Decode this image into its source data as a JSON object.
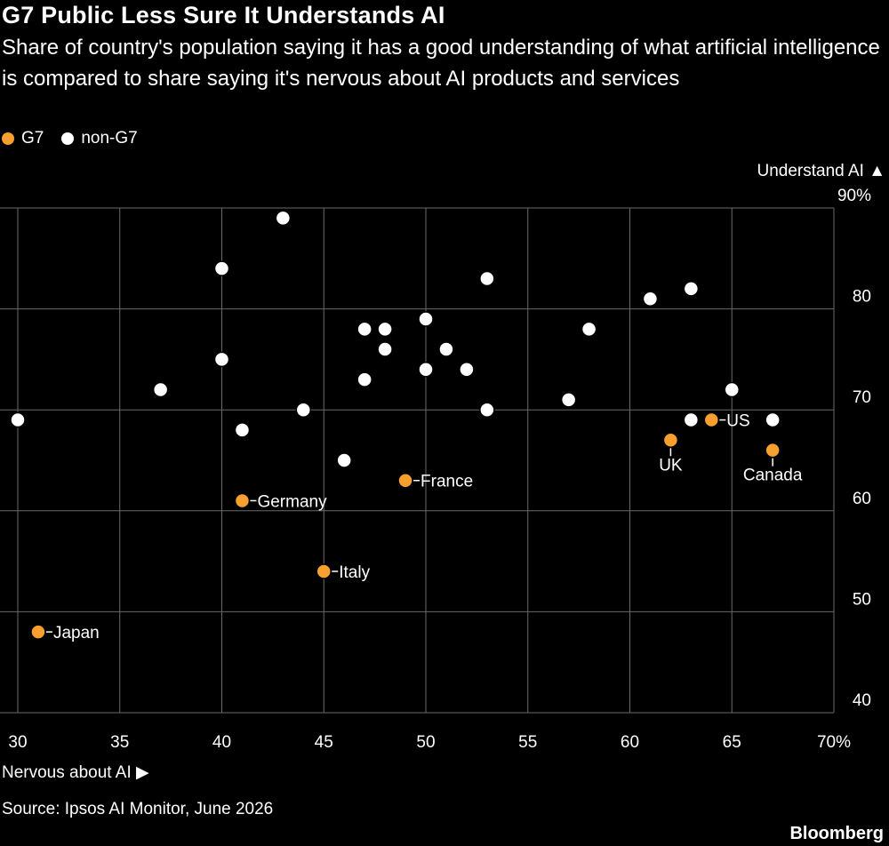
{
  "header": {
    "title": "G7 Public Less Sure It Understands AI",
    "subtitle": "Share of country's population saying it has a good understanding of what artificial intelligence is compared to share saying it's nervous about AI products and services"
  },
  "legend": [
    {
      "label": "G7",
      "color": "#f7a030"
    },
    {
      "label": "non-G7",
      "color": "#ffffff"
    }
  ],
  "axes": {
    "ylabel": "Understand AI ▲",
    "xlabel": "Nervous about AI ▶"
  },
  "footer": {
    "source": "Source: Ipsos AI Monitor, June 2026",
    "brand": "Bloomberg"
  },
  "chart_data": {
    "type": "scatter",
    "title": "G7 Public Less Sure It Understands AI",
    "xlabel": "Nervous about AI",
    "ylabel": "Understand AI",
    "xlim": [
      30,
      70
    ],
    "ylim": [
      40,
      90
    ],
    "x_ticks": [
      "30",
      "35",
      "40",
      "45",
      "50",
      "55",
      "60",
      "65",
      "70%"
    ],
    "y_ticks": [
      "90%",
      "80",
      "70",
      "60",
      "50",
      "40"
    ],
    "grid": true,
    "legend_position": "top-left",
    "series": [
      {
        "name": "G7",
        "color": "#f7a030",
        "points": [
          {
            "x": 31,
            "y": 48,
            "label": "Japan",
            "label_pos": "right"
          },
          {
            "x": 41,
            "y": 61,
            "label": "Germany",
            "label_pos": "right"
          },
          {
            "x": 45,
            "y": 54,
            "label": "Italy",
            "label_pos": "right"
          },
          {
            "x": 49,
            "y": 63,
            "label": "France",
            "label_pos": "right"
          },
          {
            "x": 62,
            "y": 67,
            "label": "UK",
            "label_pos": "below"
          },
          {
            "x": 64,
            "y": 69,
            "label": "US",
            "label_pos": "right"
          },
          {
            "x": 67,
            "y": 66,
            "label": "Canada",
            "label_pos": "below"
          }
        ]
      },
      {
        "name": "non-G7",
        "color": "#ffffff",
        "points": [
          {
            "x": 30,
            "y": 69
          },
          {
            "x": 37,
            "y": 72
          },
          {
            "x": 40,
            "y": 84
          },
          {
            "x": 40,
            "y": 75
          },
          {
            "x": 41,
            "y": 68
          },
          {
            "x": 43,
            "y": 89
          },
          {
            "x": 44,
            "y": 70
          },
          {
            "x": 46,
            "y": 65
          },
          {
            "x": 47,
            "y": 78
          },
          {
            "x": 47,
            "y": 73
          },
          {
            "x": 48,
            "y": 78
          },
          {
            "x": 48,
            "y": 76
          },
          {
            "x": 50,
            "y": 79
          },
          {
            "x": 50,
            "y": 74
          },
          {
            "x": 51,
            "y": 76
          },
          {
            "x": 52,
            "y": 74
          },
          {
            "x": 53,
            "y": 83
          },
          {
            "x": 53,
            "y": 70
          },
          {
            "x": 57,
            "y": 71
          },
          {
            "x": 58,
            "y": 78
          },
          {
            "x": 61,
            "y": 81
          },
          {
            "x": 63,
            "y": 82
          },
          {
            "x": 63,
            "y": 69
          },
          {
            "x": 65,
            "y": 72
          },
          {
            "x": 67,
            "y": 69
          }
        ]
      }
    ]
  }
}
